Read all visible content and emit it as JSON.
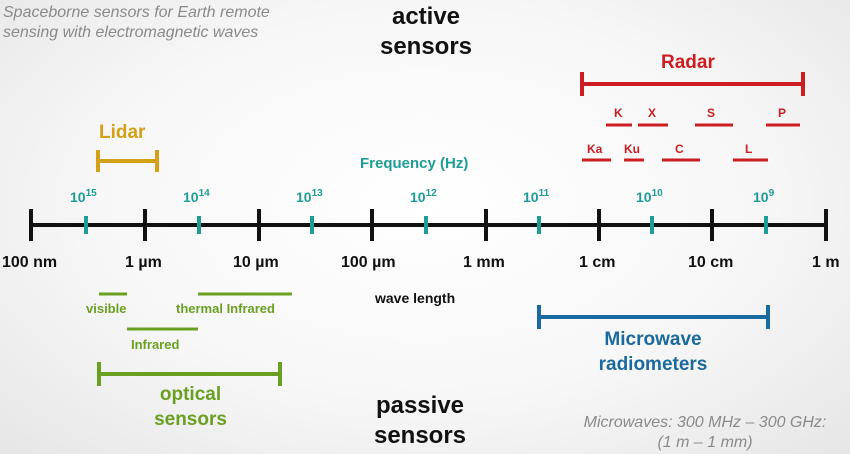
{
  "caption": {
    "line1": "Spaceborne sensors for Earth remote",
    "line2": "sensing with electromagnetic waves"
  },
  "active": {
    "line1": "active",
    "line2": "sensors"
  },
  "passive": {
    "line1": "passive",
    "line2": "sensors"
  },
  "frequency_title": "Frequency (Hz)",
  "wavelength_title": "wave length",
  "frequency_ticks": [
    {
      "base": "10",
      "exp": "15"
    },
    {
      "base": "10",
      "exp": "14"
    },
    {
      "base": "10",
      "exp": "13"
    },
    {
      "base": "10",
      "exp": "12"
    },
    {
      "base": "10",
      "exp": "11"
    },
    {
      "base": "10",
      "exp": "10"
    },
    {
      "base": "10",
      "exp": "9"
    }
  ],
  "wavelength_ticks": [
    "100 nm",
    "1 µm",
    "10 µm",
    "100 µm",
    "1 mm",
    "1 cm",
    "10 cm",
    "1 m"
  ],
  "lidar": "Lidar",
  "radar": {
    "label": "Radar",
    "bands_top": [
      "K",
      "X",
      "S",
      "P"
    ],
    "bands_bottom": [
      "Ka",
      "Ku",
      "C",
      "L"
    ]
  },
  "optical": {
    "visible": "visible",
    "thermal": "thermal Infrared",
    "infrared": "Infrared",
    "line1": "optical",
    "line2": "sensors"
  },
  "microwave": {
    "line1": "Microwave",
    "line2": "radiometers"
  },
  "note": {
    "line1": "Microwaves: 300 MHz – 300 GHz:",
    "line2": "(1 m – 1 mm)"
  },
  "colors": {
    "axis": "#111111",
    "frequency": "#1e9c96",
    "lidar": "#d4a017",
    "radar": "#cc1d22",
    "optical": "#6aa022",
    "microwave": "#1a6aa0"
  }
}
